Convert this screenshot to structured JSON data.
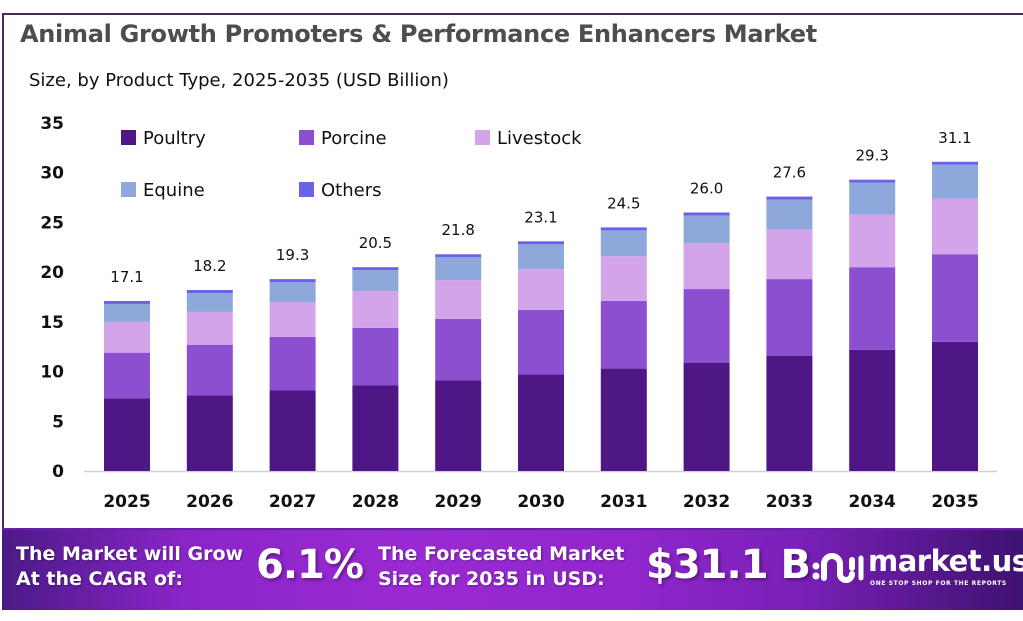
{
  "header": {
    "title": "Animal Growth Promoters & Performance Enhancers Market",
    "subtitle": "Size, by Product Type, 2025-2035 (USD Billion)"
  },
  "chart_data": {
    "type": "bar",
    "stacked": true,
    "title": "Animal Growth Promoters & Performance Enhancers Market",
    "subtitle": "Size, by Product Type, 2025-2035 (USD Billion)",
    "xlabel": "",
    "ylabel": "",
    "ylim": [
      0,
      35
    ],
    "yticks": [
      0,
      5,
      10,
      15,
      20,
      25,
      30,
      35
    ],
    "grid": false,
    "legend_position": "top-left",
    "categories": [
      "2025",
      "2026",
      "2027",
      "2028",
      "2029",
      "2030",
      "2031",
      "2032",
      "2033",
      "2034",
      "2035"
    ],
    "series": [
      {
        "name": "Poultry",
        "color": "#4f1786",
        "values": [
          7.3,
          7.6,
          8.1,
          8.6,
          9.1,
          9.7,
          10.3,
          10.9,
          11.6,
          12.2,
          13.0
        ]
      },
      {
        "name": "Porcine",
        "color": "#8b4fd0",
        "values": [
          4.6,
          5.1,
          5.4,
          5.8,
          6.2,
          6.5,
          6.8,
          7.4,
          7.7,
          8.3,
          8.8
        ]
      },
      {
        "name": "Livestock",
        "color": "#d4a4ea",
        "values": [
          3.1,
          3.3,
          3.5,
          3.7,
          3.9,
          4.1,
          4.5,
          4.6,
          5.0,
          5.3,
          5.6
        ]
      },
      {
        "name": "Equine",
        "color": "#8fa8dc",
        "values": [
          1.8,
          1.9,
          2.0,
          2.1,
          2.3,
          2.5,
          2.6,
          2.8,
          3.0,
          3.2,
          3.4
        ]
      },
      {
        "name": "Others",
        "color": "#6b63e6",
        "values": [
          0.3,
          0.3,
          0.3,
          0.3,
          0.3,
          0.3,
          0.3,
          0.3,
          0.3,
          0.3,
          0.3
        ]
      }
    ],
    "totals": [
      17.1,
      18.2,
      19.3,
      20.5,
      21.8,
      23.1,
      24.5,
      26.0,
      27.6,
      29.3,
      31.1
    ],
    "total_labels": [
      "17.1",
      "18.2",
      "19.3",
      "20.5",
      "21.8",
      "23.1",
      "24.5",
      "26.0",
      "27.6",
      "29.3",
      "31.1"
    ]
  },
  "banner": {
    "cagr_text_line1": "The Market will Grow",
    "cagr_text_line2": "At the CAGR of:",
    "cagr_value": "6.1%",
    "forecast_text_line1": "The Forecasted Market",
    "forecast_text_line2": "Size for 2035 in USD:",
    "forecast_value": "$31.1 B",
    "logo_name": "market.us",
    "logo_tagline": "ONE STOP SHOP FOR THE REPORTS",
    "logo_icon": "market-us-logo-icon"
  }
}
